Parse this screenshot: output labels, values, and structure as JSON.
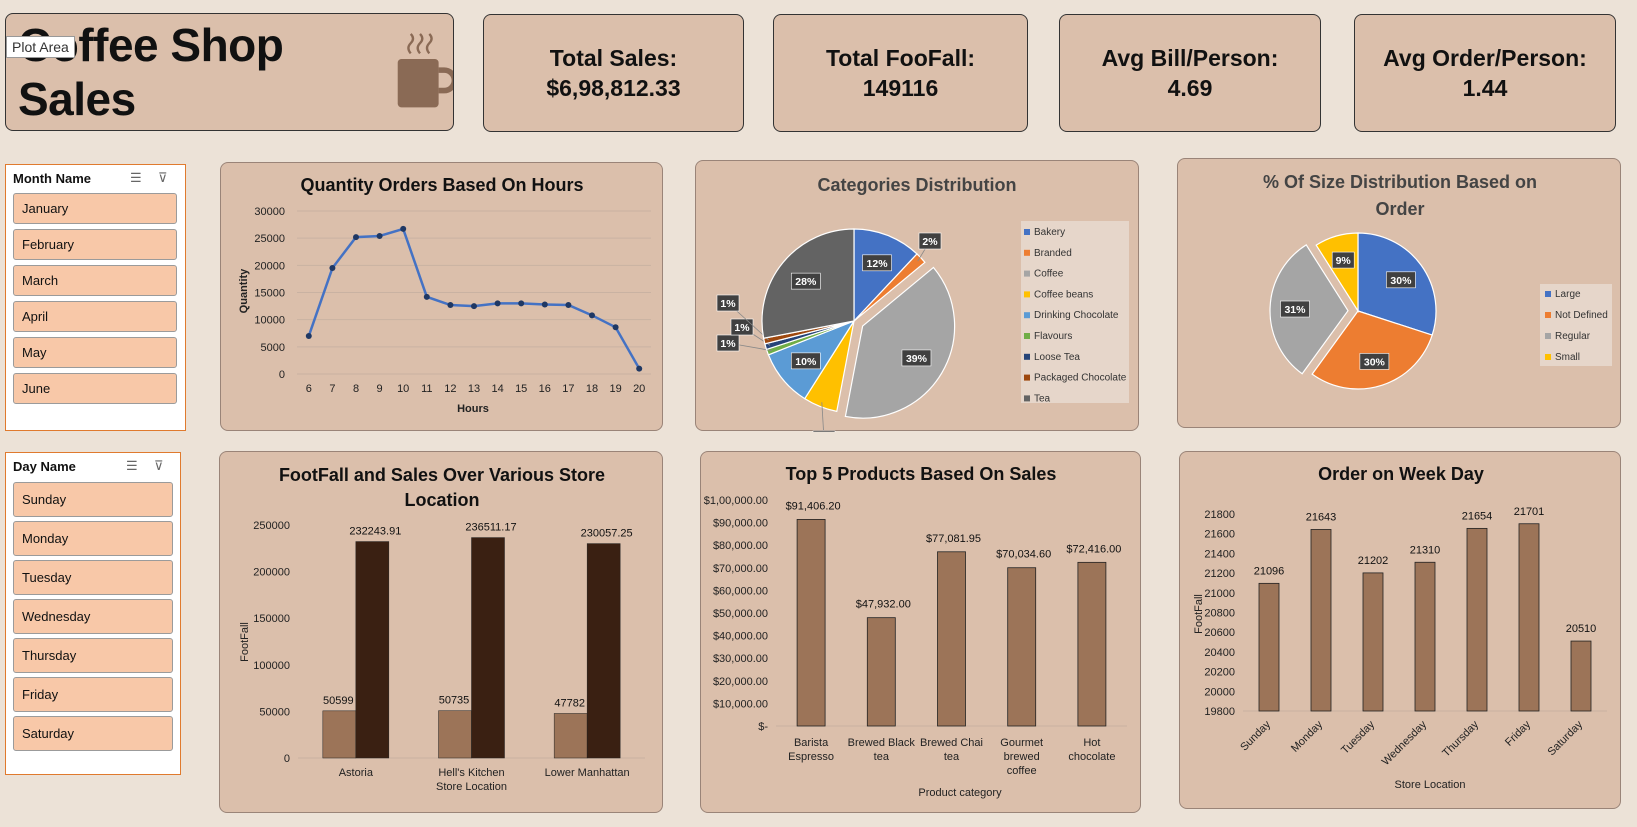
{
  "header": {
    "title": "Coffee Shop Sales",
    "tooltip": "Plot Area"
  },
  "kpis": [
    {
      "label": "Total Sales:",
      "value": "$6,98,812.33"
    },
    {
      "label": "Total FooFall:",
      "value": "149116"
    },
    {
      "label": "Avg Bill/Person:",
      "value": "4.69"
    },
    {
      "label": "Avg Order/Person:",
      "value": "1.44"
    }
  ],
  "slicers": {
    "month": {
      "title": "Month Name",
      "items": [
        "January",
        "February",
        "March",
        "April",
        "May",
        "June"
      ]
    },
    "day": {
      "title": "Day Name",
      "items": [
        "Sunday",
        "Monday",
        "Tuesday",
        "Wednesday",
        "Thursday",
        "Friday",
        "Saturday"
      ]
    }
  },
  "colors": {
    "bar_brown": "#9c7458",
    "bar_dark": "#3a2012",
    "line_blue": "#4472c4",
    "panel": "#dbbfab",
    "background": "#ece2d7"
  },
  "chart_data": [
    {
      "type": "line",
      "title": "Quantity Orders Based On Hours",
      "xlabel": "Hours",
      "ylabel": "Quantity",
      "x": [
        6,
        7,
        8,
        9,
        10,
        11,
        12,
        13,
        14,
        15,
        16,
        17,
        18,
        19,
        20
      ],
      "values": [
        7000,
        19500,
        25200,
        25400,
        26700,
        14200,
        12700,
        12500,
        13000,
        13000,
        12800,
        12700,
        10800,
        8600,
        1000
      ],
      "ylim": [
        0,
        30000
      ],
      "yticks": [
        "0",
        "5000",
        "10000",
        "15000",
        "20000",
        "25000",
        "30000"
      ],
      "grid": true
    },
    {
      "type": "pie",
      "title": "Categories Distribution",
      "categories": [
        "Bakery",
        "Branded",
        "Coffee",
        "Coffee beans",
        "Drinking Chocolate",
        "Flavours",
        "Loose Tea",
        "Packaged Chocolate",
        "Tea"
      ],
      "values": [
        12,
        2,
        39,
        6,
        10,
        1,
        1,
        1,
        28
      ],
      "labels": [
        "12%",
        "2%",
        "39%",
        "6%",
        "10%",
        "1%",
        "1%",
        "1%",
        "28%"
      ],
      "colors": [
        "#4472c4",
        "#ed7d31",
        "#a5a5a5",
        "#ffc000",
        "#5b9bd5",
        "#70ad47",
        "#264478",
        "#9e480e",
        "#636363"
      ],
      "legend": "right"
    },
    {
      "type": "pie",
      "title": "% Of Size Distribution Based on Order",
      "categories": [
        "Large",
        "Not Defined",
        "Regular",
        "Small"
      ],
      "values": [
        30,
        30,
        31,
        9
      ],
      "labels": [
        "30%",
        "30%",
        "31%",
        "9%"
      ],
      "colors": [
        "#4472c4",
        "#ed7d31",
        "#a5a5a5",
        "#ffc000"
      ],
      "legend": "right"
    },
    {
      "type": "bar",
      "title": "FootFall and Sales Over Various Store Location",
      "xlabel": "Store Location",
      "ylabel": "FootFall",
      "categories": [
        "Astoria",
        "Hell's Kitchen",
        "Lower Manhattan"
      ],
      "series": [
        {
          "values": [
            50599,
            50735,
            47782
          ],
          "labels": [
            "50599",
            "50735",
            "47782"
          ]
        },
        {
          "values": [
            232243.91,
            236511.17,
            230057.25
          ],
          "labels": [
            "232243.91",
            "236511.17",
            "230057.25"
          ]
        }
      ],
      "ylim": [
        0,
        250000
      ],
      "yticks": [
        "0",
        "50000",
        "100000",
        "150000",
        "200000",
        "250000"
      ]
    },
    {
      "type": "bar",
      "title": "Top 5 Products Based On Sales",
      "xlabel": "Product category",
      "categories": [
        [
          "Barista",
          "Espresso"
        ],
        [
          "Brewed Black",
          "tea"
        ],
        [
          "Brewed Chai",
          "tea"
        ],
        [
          "Gourmet",
          "brewed",
          "coffee"
        ],
        [
          "Hot",
          "chocolate"
        ]
      ],
      "values": [
        91406.2,
        47932.0,
        77081.95,
        70034.6,
        72416.0
      ],
      "labels": [
        "$91,406.20",
        "$47,932.00",
        "$77,081.95",
        "$70,034.60",
        "$72,416.00"
      ],
      "ylim": [
        0,
        100000
      ],
      "yticks": [
        "$-",
        "$10,000.00",
        "$20,000.00",
        "$30,000.00",
        "$40,000.00",
        "$50,000.00",
        "$60,000.00",
        "$70,000.00",
        "$80,000.00",
        "$90,000.00",
        "$1,00,000.00"
      ]
    },
    {
      "type": "bar",
      "title": "Order on Week Day",
      "xlabel": "Store Location",
      "ylabel": "FootFall",
      "categories": [
        "Sunday",
        "Monday",
        "Tuesday",
        "Wednesday",
        "Thursday",
        "Friday",
        "Saturday"
      ],
      "values": [
        21096,
        21643,
        21202,
        21310,
        21654,
        21701,
        20510
      ],
      "labels": [
        "21096",
        "21643",
        "21202",
        "21310",
        "21654",
        "21701",
        "20510"
      ],
      "ylim": [
        19800,
        21800
      ],
      "yticks": [
        "19800",
        "20000",
        "20200",
        "20400",
        "20600",
        "20800",
        "21000",
        "21200",
        "21400",
        "21600",
        "21800"
      ]
    }
  ]
}
